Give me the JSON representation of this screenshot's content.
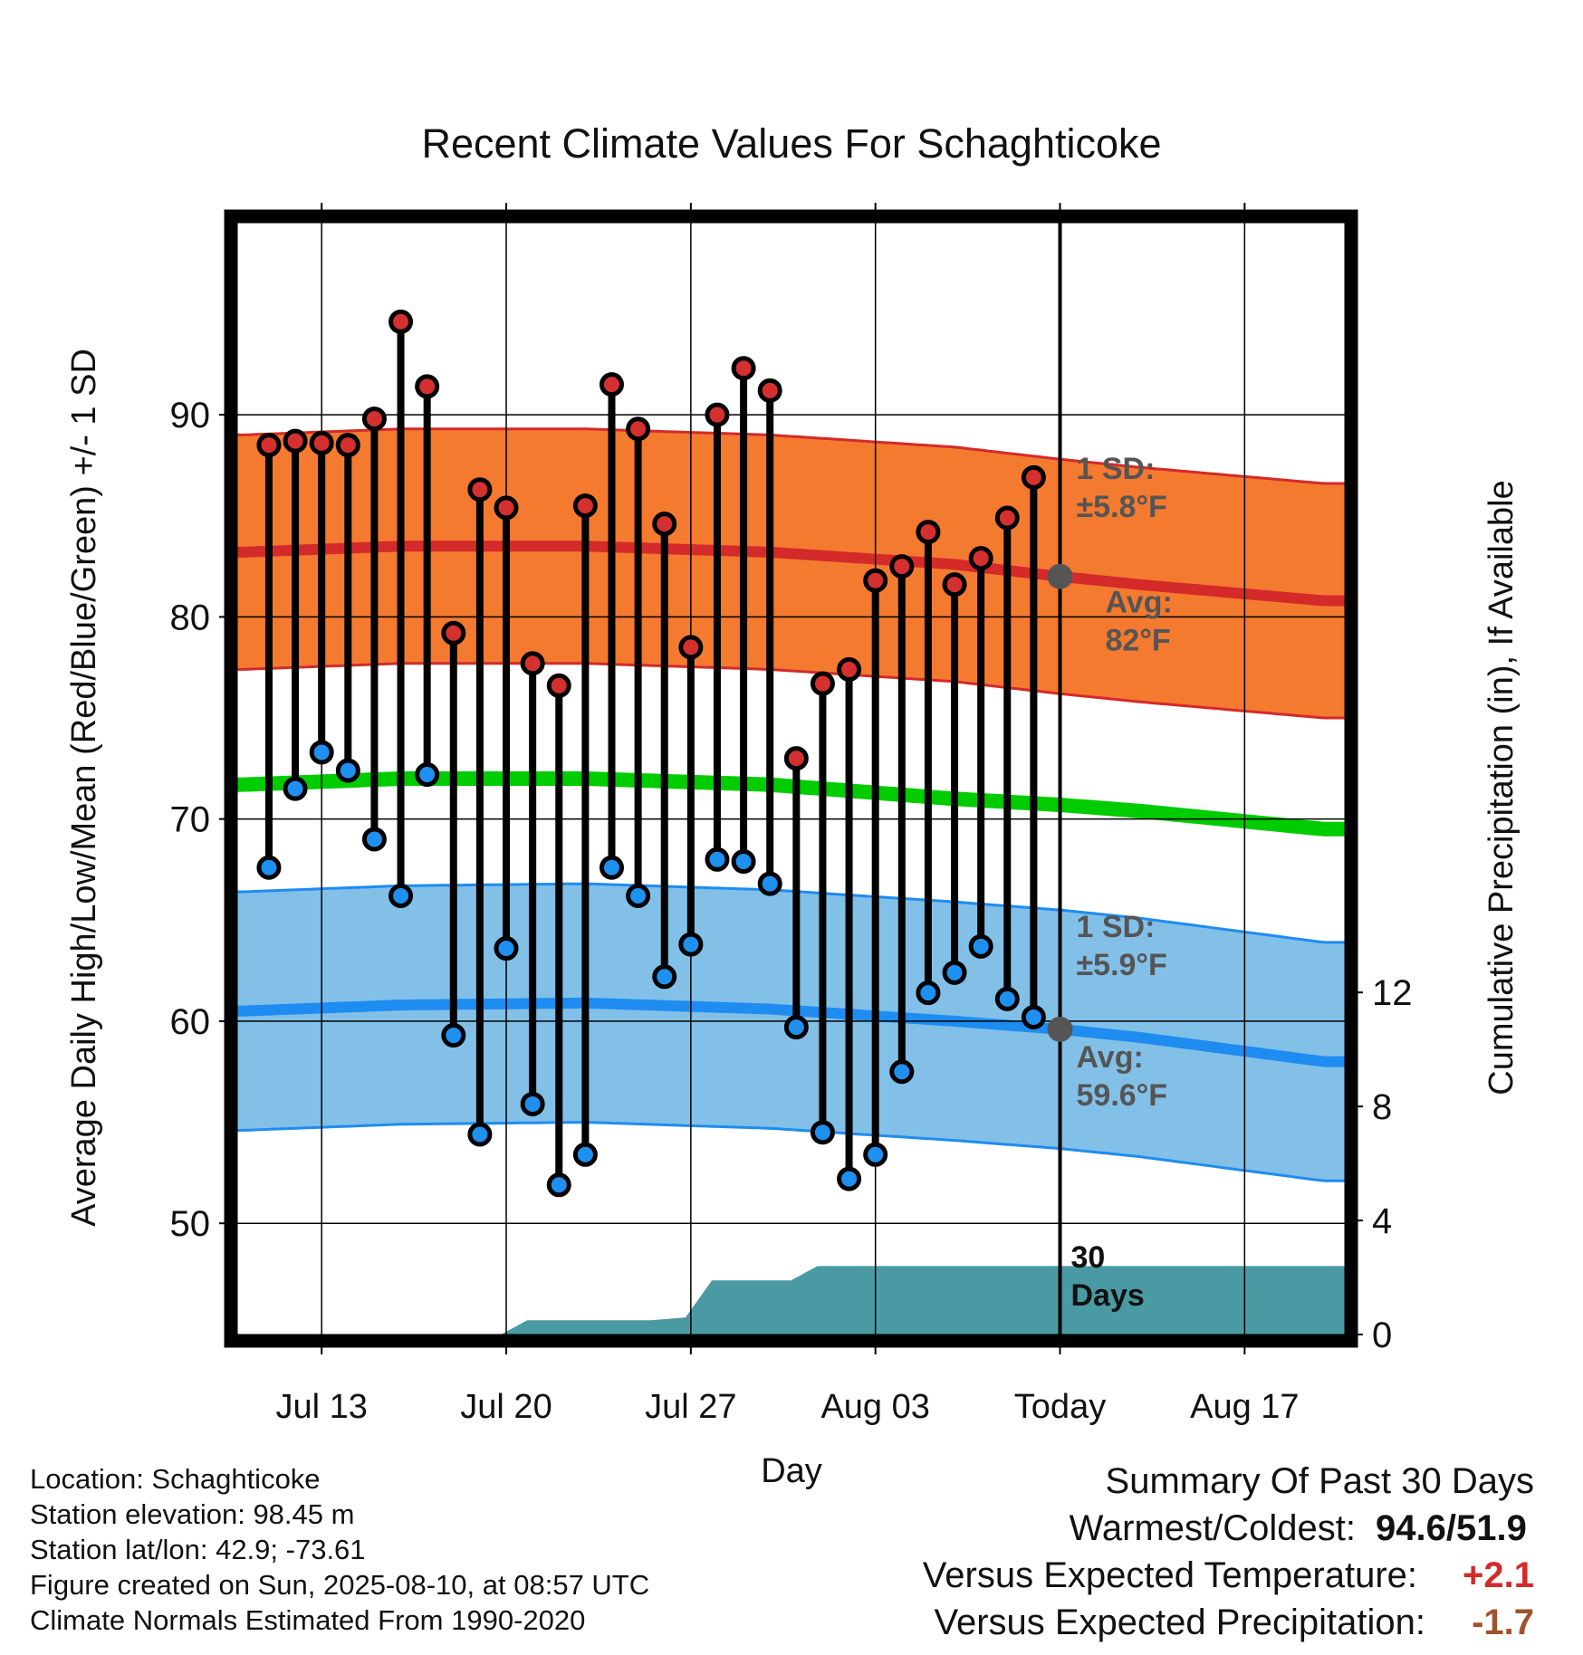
{
  "chart_data": {
    "type": "line",
    "title": "Recent Climate Values For Schaghticoke",
    "xlabel": "Day",
    "ylabel": "Average Daily High/Low/Mean (Red/Blue/Green) +/- 1 SD",
    "ylabel_right": "Cumulative Precipitation (in), If Available",
    "ylim": [
      44.5,
      99.5
    ],
    "y_ticks": [
      50,
      60,
      70,
      80,
      90
    ],
    "y2_ticks": [
      0,
      4,
      8,
      12
    ],
    "y2lim": [
      0,
      39
    ],
    "x_tick_labels": [
      {
        "day": 0,
        "label": "Jul 13"
      },
      {
        "day": 7,
        "label": "Jul 20"
      },
      {
        "day": 14,
        "label": "Jul 27"
      },
      {
        "day": 21,
        "label": "Aug 03"
      },
      {
        "day": 28,
        "label": "Today"
      },
      {
        "day": 35,
        "label": "Aug 17"
      }
    ],
    "x_range_days": [
      -3.2,
      38.8
    ],
    "today_day": 28,
    "grid": true,
    "daily_high": [
      88.5,
      88.7,
      88.6,
      88.5,
      89.8,
      94.6,
      91.4,
      79.2,
      86.3,
      85.4,
      77.7,
      76.6,
      85.5,
      91.5,
      89.3,
      84.6,
      78.5,
      90.0,
      92.3,
      91.2,
      73.0,
      76.7,
      77.4,
      81.8,
      82.5,
      84.2,
      81.6,
      82.9,
      84.9,
      86.9
    ],
    "daily_low": [
      67.6,
      71.5,
      73.3,
      72.4,
      69.0,
      66.2,
      72.2,
      59.3,
      54.4,
      63.6,
      55.9,
      51.9,
      53.4,
      67.6,
      66.2,
      62.2,
      63.8,
      68.0,
      67.9,
      66.8,
      59.7,
      54.5,
      52.2,
      53.4,
      57.5,
      61.4,
      62.4,
      63.7,
      61.1,
      60.2
    ],
    "first_day": -2,
    "normal_high": {
      "day": [
        -3,
        3,
        10,
        17,
        24,
        28,
        31,
        38
      ],
      "avg": [
        83.2,
        83.5,
        83.5,
        83.2,
        82.6,
        82.0,
        81.6,
        80.8
      ],
      "sd": 5.8
    },
    "normal_low": {
      "day": [
        -3,
        3,
        10,
        17,
        24,
        28,
        31,
        38
      ],
      "avg": [
        60.5,
        60.8,
        60.9,
        60.6,
        60.0,
        59.6,
        59.2,
        58.0
      ],
      "sd": 5.9
    },
    "normal_mean": {
      "day": [
        -3,
        3,
        10,
        17,
        24,
        28,
        31,
        38
      ],
      "avg": [
        71.7,
        72.0,
        72.0,
        71.7,
        71.0,
        70.7,
        70.4,
        69.5
      ]
    },
    "precip_cumulative": {
      "day": [
        6.8,
        7.8,
        12.5,
        13.8,
        14.8,
        17.8,
        18.8,
        20.0,
        38.8
      ],
      "value": [
        0.0,
        0.5,
        0.5,
        0.6,
        1.9,
        1.9,
        2.4,
        2.4,
        2.4
      ]
    },
    "annotations": {
      "high_sd_label": "1 SD:",
      "high_sd_value": "±5.8°F",
      "high_avg_label": "Avg:",
      "high_avg_value": "82°F",
      "low_sd_label": "1 SD:",
      "low_sd_value": "±5.9°F",
      "low_avg_label": "Avg:",
      "low_avg_value": "59.6°F",
      "days_label_1": "30",
      "days_label_2": "Days"
    },
    "colors": {
      "high_band": "#f47a30",
      "high_line": "#d42a2a",
      "low_band": "#82c0e8",
      "low_line": "#1e8cf0",
      "mean_line": "#00cc00",
      "precip": "#4a9aa3",
      "high_point": "#d43030",
      "low_point": "#1e90f0"
    }
  },
  "info": {
    "location": "Location: Schaghticoke",
    "elevation": "Station elevation: 98.45 m",
    "latlon": "Station lat/lon: 42.9; -73.61",
    "created": "Figure created on Sun, 2025-08-10, at 08:57 UTC",
    "normals": "Climate Normals Estimated From 1990-2020"
  },
  "summary": {
    "title": "Summary Of Past 30 Days",
    "warm_cold_label": "Warmest/Coldest:",
    "warm_cold_value": "94.6/51.9",
    "temp_label": "Versus Expected Temperature:",
    "temp_value": "+2.1",
    "temp_color": "#d42a2a",
    "precip_label": "Versus Expected Precipitation:",
    "precip_value": "-1.7",
    "precip_color": "#a0522d"
  }
}
